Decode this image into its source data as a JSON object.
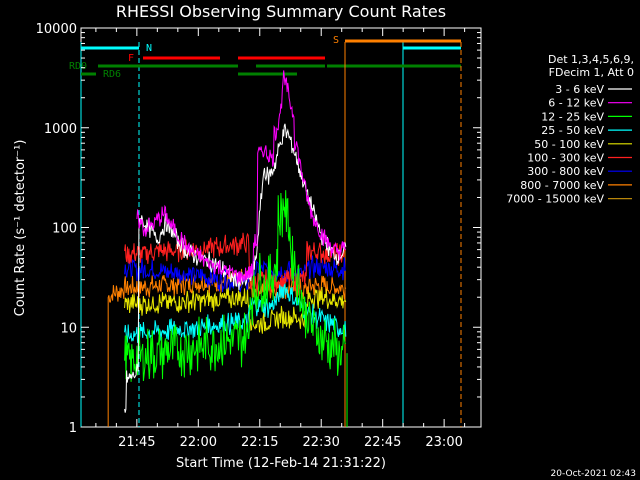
{
  "chart_data": {
    "type": "line",
    "title": "RHESSI Observing Summary Count Rates",
    "xlabel": "Start Time (12-Feb-14 21:31:22)",
    "ylabel": "Count Rate (s⁻¹ detector⁻¹)",
    "ylim": [
      1,
      10000
    ],
    "yscale": "log",
    "xlim": [
      "21:31",
      "23:09"
    ],
    "x_ticks": [
      "21:45",
      "22:00",
      "22:15",
      "22:30",
      "22:45",
      "23:00"
    ],
    "y_ticks": [
      "1",
      "10",
      "100",
      "1000",
      "10000"
    ],
    "grid": false,
    "legend_position": "right",
    "legend_header": [
      "Det 1,3,4,5,6,9,",
      "FDecim 1, Att 0"
    ],
    "footer_date": "20-Oct-2021 02:43",
    "series": [
      {
        "name": "3 - 6 keV",
        "color": "#ffffff",
        "points": [
          [
            "21:42",
            1.5
          ],
          [
            "21:43",
            3
          ],
          [
            "21:45",
            3.5
          ],
          [
            "21:46",
            120
          ],
          [
            "21:48",
            100
          ],
          [
            "21:50",
            75
          ],
          [
            "21:52",
            110
          ],
          [
            "21:54",
            85
          ],
          [
            "21:56",
            65
          ],
          [
            "21:58",
            55
          ],
          [
            "22:00",
            50
          ],
          [
            "22:03",
            45
          ],
          [
            "22:06",
            38
          ],
          [
            "22:09",
            30
          ],
          [
            "22:11",
            28
          ],
          [
            "22:13",
            32
          ],
          [
            "22:14",
            45
          ],
          [
            "22:16",
            380
          ],
          [
            "22:17",
            320
          ],
          [
            "22:18",
            360
          ],
          [
            "22:19",
            480
          ],
          [
            "22:20",
            700
          ],
          [
            "22:21",
            950
          ],
          [
            "22:22",
            850
          ],
          [
            "22:23",
            650
          ],
          [
            "22:24",
            480
          ],
          [
            "22:25",
            360
          ],
          [
            "22:26",
            260
          ],
          [
            "22:27",
            190
          ],
          [
            "22:28",
            145
          ],
          [
            "22:29",
            110
          ],
          [
            "22:30",
            85
          ],
          [
            "22:31",
            72
          ],
          [
            "22:32",
            60
          ],
          [
            "22:33",
            55
          ],
          [
            "22:34",
            52
          ],
          [
            "22:35",
            55
          ],
          [
            "22:36",
            60
          ]
        ]
      },
      {
        "name": "6 - 12 keV",
        "color": "#ff00ff",
        "points": [
          [
            "21:45",
            125
          ],
          [
            "21:47",
            95
          ],
          [
            "21:49",
            110
          ],
          [
            "21:51",
            130
          ],
          [
            "21:52",
            140
          ],
          [
            "21:53",
            110
          ],
          [
            "21:55",
            85
          ],
          [
            "21:57",
            65
          ],
          [
            "21:59",
            55
          ],
          [
            "22:02",
            45
          ],
          [
            "22:05",
            40
          ],
          [
            "22:08",
            35
          ],
          [
            "22:11",
            32
          ],
          [
            "22:13",
            35
          ],
          [
            "22:14",
            70
          ],
          [
            "22:15",
            550
          ],
          [
            "22:16",
            600
          ],
          [
            "22:17",
            540
          ],
          [
            "22:18",
            500
          ],
          [
            "22:19",
            900
          ],
          [
            "22:20",
            1500
          ],
          [
            "22:21",
            3000
          ],
          [
            "22:22",
            2200
          ],
          [
            "22:23",
            1400
          ],
          [
            "22:24",
            700
          ],
          [
            "22:25",
            400
          ],
          [
            "22:26",
            260
          ],
          [
            "22:27",
            170
          ],
          [
            "22:28",
            130
          ],
          [
            "22:29",
            105
          ],
          [
            "22:30",
            88
          ],
          [
            "22:31",
            76
          ],
          [
            "22:32",
            68
          ],
          [
            "22:33",
            60
          ],
          [
            "22:34",
            57
          ],
          [
            "22:35",
            60
          ],
          [
            "22:36",
            64
          ]
        ]
      },
      {
        "name": "12 - 25 keV",
        "color": "#00ff00",
        "points": [
          [
            "21:42",
            4.5
          ],
          [
            "21:45",
            5
          ],
          [
            "21:50",
            5.5
          ],
          [
            "21:55",
            6
          ],
          [
            "22:00",
            6.5
          ],
          [
            "22:05",
            7
          ],
          [
            "22:10",
            7.5
          ],
          [
            "22:12",
            8
          ],
          [
            "22:13",
            20
          ],
          [
            "22:15",
            30
          ],
          [
            "22:17",
            25
          ],
          [
            "22:19",
            45
          ],
          [
            "22:20",
            120
          ],
          [
            "22:21",
            190
          ],
          [
            "22:22",
            110
          ],
          [
            "22:23",
            55
          ],
          [
            "22:24",
            35
          ],
          [
            "22:25",
            22
          ],
          [
            "22:26",
            15
          ],
          [
            "22:28",
            10
          ],
          [
            "22:30",
            8
          ],
          [
            "22:32",
            7
          ],
          [
            "22:34",
            6
          ],
          [
            "22:35",
            5.5
          ],
          [
            "22:36",
            5.5
          ]
        ]
      },
      {
        "name": "25 - 50 keV",
        "color": "#00ffff",
        "points": [
          [
            "21:42",
            8
          ],
          [
            "21:45",
            8.5
          ],
          [
            "21:50",
            9
          ],
          [
            "21:55",
            9.5
          ],
          [
            "22:00",
            10
          ],
          [
            "22:05",
            10.5
          ],
          [
            "22:10",
            11
          ],
          [
            "22:12",
            11
          ],
          [
            "22:13",
            17
          ],
          [
            "22:15",
            17
          ],
          [
            "22:17",
            16
          ],
          [
            "22:19",
            18
          ],
          [
            "22:20",
            22
          ],
          [
            "22:21",
            26
          ],
          [
            "22:22",
            22
          ],
          [
            "22:24",
            18
          ],
          [
            "22:26",
            15
          ],
          [
            "22:28",
            13
          ],
          [
            "22:30",
            12
          ],
          [
            "22:32",
            11
          ],
          [
            "22:34",
            10
          ],
          [
            "22:36",
            10
          ]
        ]
      },
      {
        "name": "50 - 100 keV",
        "color": "#e6e600",
        "points": [
          [
            "21:42",
            17
          ],
          [
            "21:45",
            17
          ],
          [
            "21:50",
            17.5
          ],
          [
            "21:55",
            18
          ],
          [
            "22:00",
            18.5
          ],
          [
            "22:05",
            19
          ],
          [
            "22:10",
            19.5
          ],
          [
            "22:12",
            19.5
          ],
          [
            "22:13",
            11
          ],
          [
            "22:16",
            11
          ],
          [
            "22:19",
            12
          ],
          [
            "22:21",
            13
          ],
          [
            "22:24",
            12.5
          ],
          [
            "22:26",
            12
          ],
          [
            "22:27",
            20
          ],
          [
            "22:30",
            20
          ],
          [
            "22:33",
            19
          ],
          [
            "22:36",
            19
          ]
        ]
      },
      {
        "name": "100 - 300 keV",
        "color": "#ff2020",
        "points": [
          [
            "21:42",
            55
          ],
          [
            "21:45",
            55
          ],
          [
            "21:50",
            57
          ],
          [
            "21:55",
            58
          ],
          [
            "22:00",
            61
          ],
          [
            "22:05",
            64
          ],
          [
            "22:10",
            68
          ],
          [
            "22:12",
            70
          ],
          [
            "22:13",
            28
          ],
          [
            "22:16",
            29
          ],
          [
            "22:19",
            29
          ],
          [
            "22:22",
            30
          ],
          [
            "22:24",
            30
          ],
          [
            "22:26",
            30
          ],
          [
            "22:27",
            58
          ],
          [
            "22:30",
            56
          ],
          [
            "22:33",
            53
          ],
          [
            "22:36",
            55
          ]
        ]
      },
      {
        "name": "300 - 800 keV",
        "color": "#0000ff",
        "points": [
          [
            "21:42",
            40
          ],
          [
            "21:45",
            38
          ],
          [
            "21:50",
            37
          ],
          [
            "21:55",
            35
          ],
          [
            "22:00",
            33
          ],
          [
            "22:05",
            30
          ],
          [
            "22:10",
            28
          ],
          [
            "22:12",
            27
          ],
          [
            "22:13",
            38
          ],
          [
            "22:16",
            38
          ],
          [
            "22:19",
            37
          ],
          [
            "22:22",
            36
          ],
          [
            "22:24",
            35
          ],
          [
            "22:26",
            34
          ],
          [
            "22:27",
            40
          ],
          [
            "22:30",
            40
          ],
          [
            "22:33",
            39
          ],
          [
            "22:36",
            39
          ]
        ]
      },
      {
        "name": "800 - 7000 keV",
        "color": "#ff8000",
        "points": [
          [
            "21:38",
            20
          ],
          [
            "21:42",
            25
          ],
          [
            "21:45",
            25
          ],
          [
            "21:50",
            26
          ],
          [
            "21:55",
            27
          ],
          [
            "22:00",
            28
          ],
          [
            "22:05",
            29
          ],
          [
            "22:10",
            29.5
          ],
          [
            "22:12",
            30
          ],
          [
            "22:13",
            24
          ],
          [
            "22:16",
            24
          ],
          [
            "22:19",
            25
          ],
          [
            "22:22",
            25
          ],
          [
            "22:24",
            24
          ],
          [
            "22:26",
            23
          ],
          [
            "22:27",
            26
          ],
          [
            "22:30",
            26
          ],
          [
            "22:33",
            25
          ],
          [
            "22:36",
            25
          ]
        ]
      },
      {
        "name": "7000 - 15000 keV",
        "color": "#b8860b",
        "points": []
      }
    ],
    "annotations": [
      {
        "label": "N",
        "color": "#00ffff"
      },
      {
        "label": "F",
        "color": "#ff0000"
      },
      {
        "label": "RD0",
        "color": "#008000"
      },
      {
        "label": "RD6",
        "color": "#008000"
      },
      {
        "label": "S",
        "color": "#ff8000"
      }
    ]
  }
}
